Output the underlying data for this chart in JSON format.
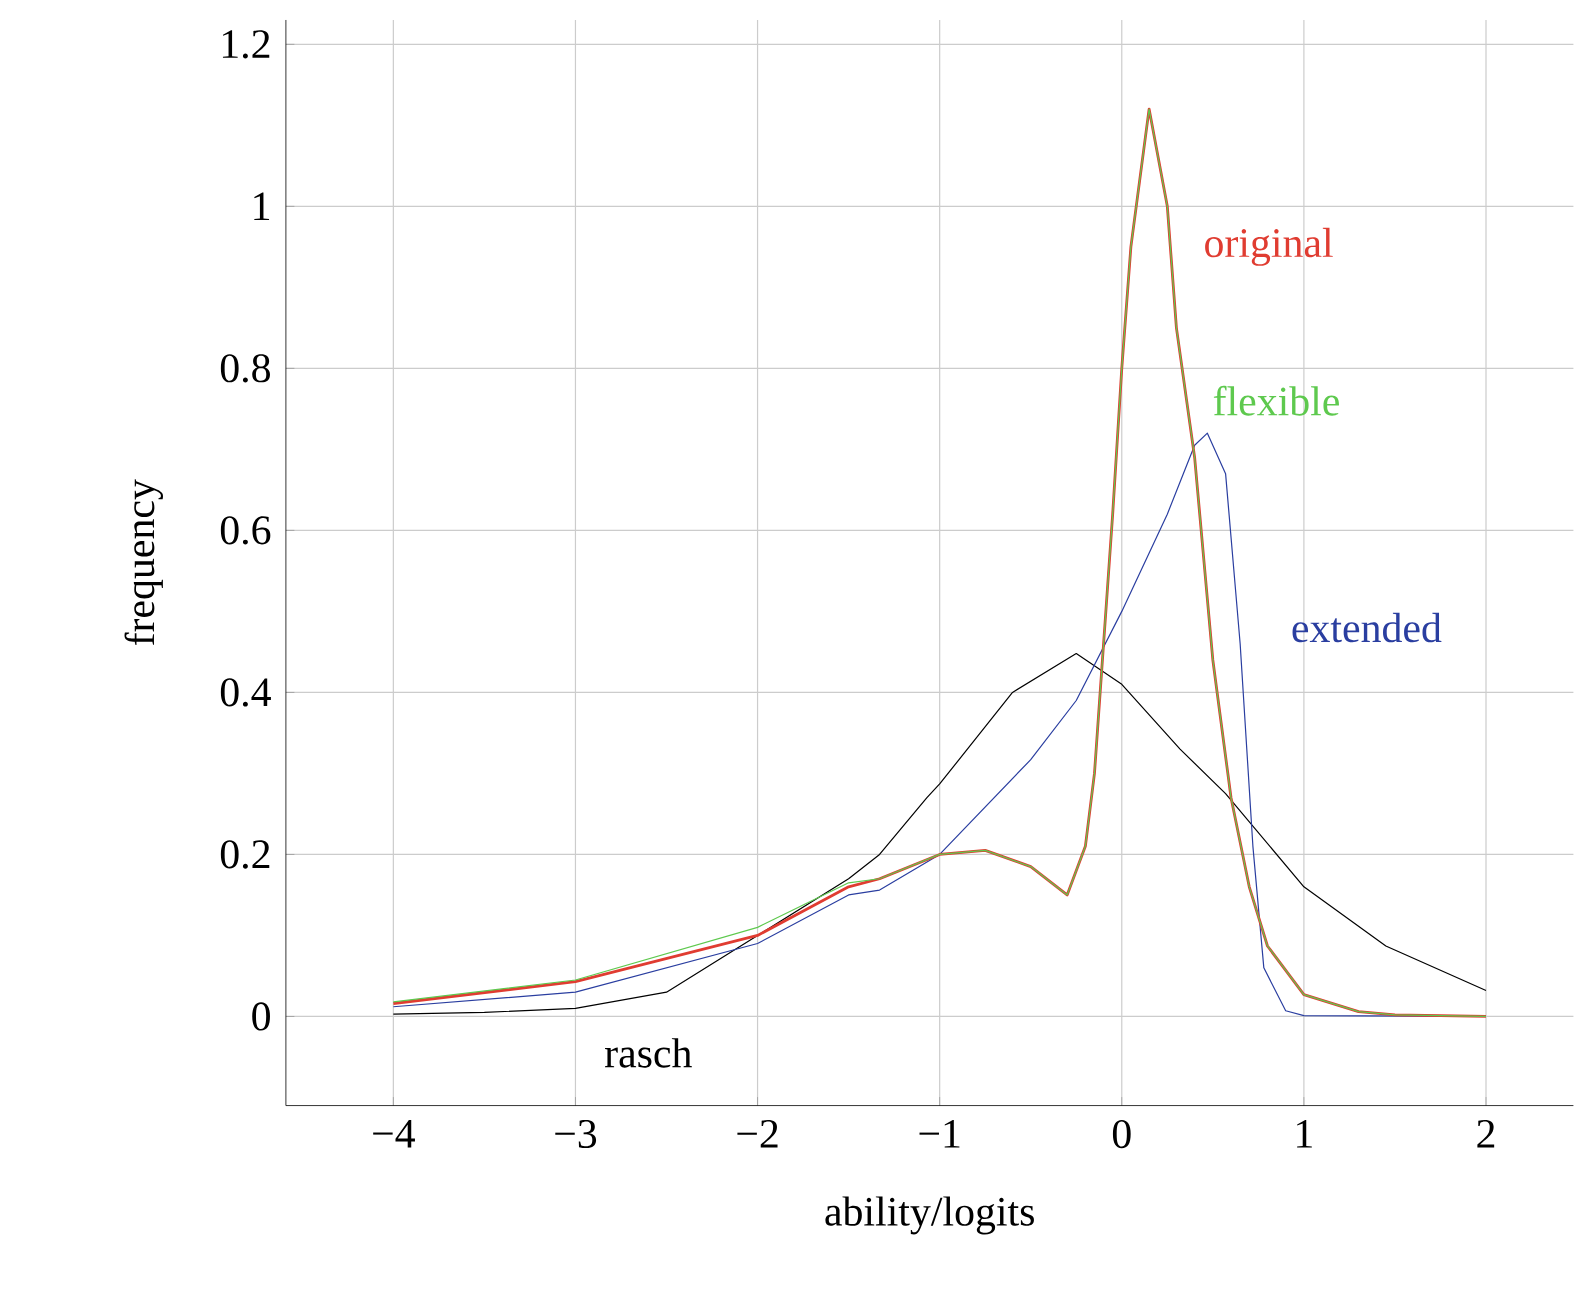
{
  "chart_data": {
    "type": "line",
    "xlabel": "ability/logits",
    "ylabel": "frequency",
    "xlim": [
      -4.59,
      2.48
    ],
    "ylim": [
      -0.11,
      1.23
    ],
    "xticks": [
      {
        "value": -4,
        "label": "−4"
      },
      {
        "value": -3,
        "label": "−3"
      },
      {
        "value": -2,
        "label": "−2"
      },
      {
        "value": -1,
        "label": "−1"
      },
      0,
      1,
      2
    ],
    "yticks": [
      0,
      0.2,
      0.4,
      0.6,
      0.8,
      1,
      1.2
    ],
    "grid": true,
    "marker": "none",
    "line_style": "solid",
    "series": [
      {
        "name": "rasch",
        "color": "#000000",
        "x": [
          -4,
          -3.5,
          -3,
          -2.5,
          -2,
          -1.5,
          -1.33,
          -1.07,
          -1,
          -0.6,
          -0.25,
          0,
          0.32,
          0.57,
          1,
          1.45,
          2
        ],
        "values": [
          0.003,
          0.005,
          0.01,
          0.03,
          0.1,
          0.17,
          0.2,
          0.27,
          0.287,
          0.4,
          0.448,
          0.41,
          0.33,
          0.275,
          0.16,
          0.087,
          0.032
        ]
      },
      {
        "name": "extended",
        "color": "#2a3ea0",
        "x": [
          -4,
          -3,
          -2,
          -1.5,
          -1.33,
          -1,
          -0.5,
          -0.25,
          0,
          0.25,
          0.4,
          0.47,
          0.57,
          0.65,
          0.72,
          0.78,
          0.9,
          1,
          2
        ],
        "values": [
          0.012,
          0.03,
          0.09,
          0.15,
          0.156,
          0.2,
          0.317,
          0.39,
          0.5,
          0.62,
          0.705,
          0.72,
          0.67,
          0.46,
          0.21,
          0.06,
          0.007,
          0.001,
          0
        ]
      },
      {
        "name": "original",
        "color": "#e03c31",
        "x": [
          -4,
          -3,
          -2,
          -1.5,
          -1.33,
          -1,
          -0.75,
          -0.5,
          -0.3,
          -0.2,
          -0.15,
          -0.1,
          -0.05,
          0,
          0.05,
          0.15,
          0.25,
          0.3,
          0.4,
          0.5,
          0.6,
          0.7,
          0.8,
          1,
          1.3,
          1.5,
          2
        ],
        "values": [
          0.016,
          0.043,
          0.1,
          0.16,
          0.17,
          0.2,
          0.205,
          0.185,
          0.15,
          0.21,
          0.3,
          0.46,
          0.62,
          0.8,
          0.95,
          1.12,
          1,
          0.85,
          0.69,
          0.44,
          0.27,
          0.16,
          0.087,
          0.027,
          0.006,
          0.002,
          0
        ]
      },
      {
        "name": "flexible",
        "color": "#5ec94e",
        "x": [
          -4,
          -3,
          -2,
          -1.5,
          -1.33,
          -1,
          -0.75,
          -0.5,
          -0.3,
          -0.2,
          -0.15,
          -0.1,
          -0.05,
          0,
          0.05,
          0.15,
          0.25,
          0.3,
          0.4,
          0.5,
          0.6,
          0.7,
          0.8,
          1,
          1.3,
          1.5,
          2
        ],
        "values": [
          0.018,
          0.045,
          0.11,
          0.165,
          0.17,
          0.2,
          0.205,
          0.185,
          0.15,
          0.21,
          0.3,
          0.46,
          0.62,
          0.8,
          0.95,
          1.12,
          1,
          0.85,
          0.69,
          0.44,
          0.27,
          0.16,
          0.087,
          0.027,
          0.006,
          0.002,
          0
        ]
      }
    ]
  }
}
